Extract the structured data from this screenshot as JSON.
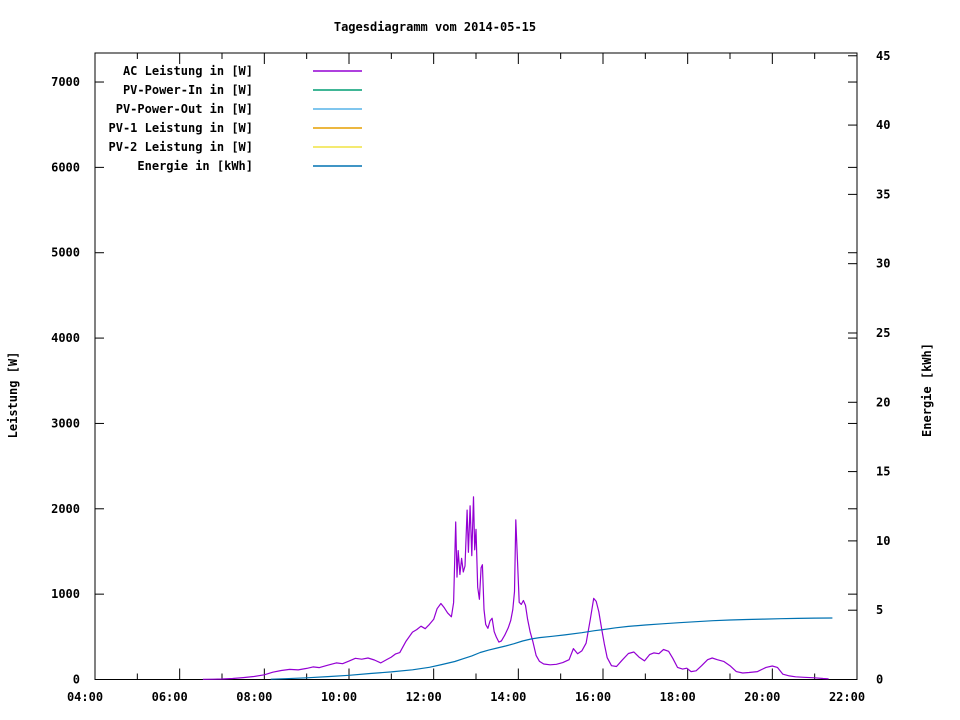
{
  "title": "Tagesdiagramm vom 2014-05-15",
  "colors": {
    "foreground": "#000000",
    "background": "#ffffff",
    "ac_power": "#9400D3",
    "pv_power_in": "#009E73",
    "pv_power_out": "#56B4E9",
    "pv1_power": "#E69F00",
    "pv2_power": "#F0E442",
    "energy": "#0072B2"
  },
  "chart_data": {
    "type": "line",
    "title": "Tagesdiagramm vom 2014-05-15",
    "grid": false,
    "legend_position": "top-left-inside",
    "x_axis": {
      "unit": "time of day",
      "range_hours": [
        4,
        22
      ],
      "major_ticks_hours": [
        4,
        6,
        8,
        10,
        12,
        14,
        16,
        18,
        20,
        22
      ],
      "tick_labels": [
        "04:00",
        "06:00",
        "08:00",
        "10:00",
        "12:00",
        "14:00",
        "16:00",
        "18:00",
        "20:00",
        "22:00"
      ],
      "minor_tick_every_hours": 1
    },
    "y_left": {
      "label": "Leistung [W]",
      "range": [
        0,
        7340
      ],
      "tick_values": [
        0,
        1000,
        2000,
        3000,
        4000,
        5000,
        6000,
        7000
      ],
      "tick_labels": [
        "0",
        "1000",
        "2000",
        "3000",
        "4000",
        "5000",
        "6000",
        "7000"
      ]
    },
    "y_right": {
      "label": "Energie [kWh]",
      "range": [
        0,
        45.2
      ],
      "tick_values": [
        0,
        5,
        10,
        15,
        20,
        25,
        30,
        35,
        40,
        45
      ],
      "tick_labels": [
        "0",
        "5",
        "10",
        "15",
        "20",
        "25",
        "30",
        "35",
        "40",
        "45"
      ]
    },
    "series": [
      {
        "name": "AC Leistung in [W]",
        "color": "#9400D3",
        "axis": "left",
        "visible_curve": true,
        "points": [
          [
            6.55,
            2
          ],
          [
            6.8,
            3
          ],
          [
            7.0,
            6
          ],
          [
            7.25,
            12
          ],
          [
            7.5,
            22
          ],
          [
            7.75,
            35
          ],
          [
            8.0,
            55
          ],
          [
            8.2,
            85
          ],
          [
            8.4,
            105
          ],
          [
            8.6,
            118
          ],
          [
            8.8,
            112
          ],
          [
            9.0,
            130
          ],
          [
            9.15,
            148
          ],
          [
            9.3,
            140
          ],
          [
            9.5,
            168
          ],
          [
            9.7,
            195
          ],
          [
            9.85,
            185
          ],
          [
            10.0,
            215
          ],
          [
            10.15,
            248
          ],
          [
            10.3,
            238
          ],
          [
            10.45,
            252
          ],
          [
            10.6,
            228
          ],
          [
            10.75,
            195
          ],
          [
            10.9,
            235
          ],
          [
            11.0,
            262
          ],
          [
            11.1,
            300
          ],
          [
            11.2,
            315
          ],
          [
            11.35,
            450
          ],
          [
            11.5,
            555
          ],
          [
            11.6,
            585
          ],
          [
            11.7,
            625
          ],
          [
            11.8,
            595
          ],
          [
            11.9,
            645
          ],
          [
            12.0,
            705
          ],
          [
            12.08,
            830
          ],
          [
            12.17,
            890
          ],
          [
            12.25,
            840
          ],
          [
            12.33,
            780
          ],
          [
            12.42,
            735
          ],
          [
            12.47,
            900
          ],
          [
            12.52,
            1845
          ],
          [
            12.55,
            1200
          ],
          [
            12.58,
            1510
          ],
          [
            12.62,
            1230
          ],
          [
            12.66,
            1420
          ],
          [
            12.7,
            1260
          ],
          [
            12.74,
            1330
          ],
          [
            12.79,
            1985
          ],
          [
            12.82,
            1490
          ],
          [
            12.86,
            2035
          ],
          [
            12.9,
            1450
          ],
          [
            12.94,
            2140
          ],
          [
            12.97,
            1520
          ],
          [
            13.0,
            1760
          ],
          [
            13.04,
            1080
          ],
          [
            13.08,
            940
          ],
          [
            13.12,
            1310
          ],
          [
            13.15,
            1345
          ],
          [
            13.19,
            820
          ],
          [
            13.23,
            645
          ],
          [
            13.28,
            600
          ],
          [
            13.33,
            685
          ],
          [
            13.38,
            718
          ],
          [
            13.43,
            560
          ],
          [
            13.48,
            498
          ],
          [
            13.54,
            438
          ],
          [
            13.6,
            452
          ],
          [
            13.68,
            520
          ],
          [
            13.76,
            605
          ],
          [
            13.82,
            690
          ],
          [
            13.87,
            820
          ],
          [
            13.91,
            1030
          ],
          [
            13.94,
            1870
          ],
          [
            13.98,
            1390
          ],
          [
            14.02,
            905
          ],
          [
            14.07,
            880
          ],
          [
            14.12,
            925
          ],
          [
            14.17,
            868
          ],
          [
            14.22,
            705
          ],
          [
            14.28,
            555
          ],
          [
            14.34,
            452
          ],
          [
            14.42,
            282
          ],
          [
            14.5,
            212
          ],
          [
            14.6,
            182
          ],
          [
            14.75,
            172
          ],
          [
            14.9,
            178
          ],
          [
            15.05,
            198
          ],
          [
            15.2,
            232
          ],
          [
            15.3,
            362
          ],
          [
            15.4,
            302
          ],
          [
            15.5,
            335
          ],
          [
            15.6,
            425
          ],
          [
            15.7,
            705
          ],
          [
            15.78,
            950
          ],
          [
            15.84,
            915
          ],
          [
            15.9,
            795
          ],
          [
            15.97,
            590
          ],
          [
            16.03,
            420
          ],
          [
            16.1,
            255
          ],
          [
            16.2,
            162
          ],
          [
            16.32,
            152
          ],
          [
            16.45,
            225
          ],
          [
            16.6,
            305
          ],
          [
            16.73,
            322
          ],
          [
            16.85,
            262
          ],
          [
            16.98,
            218
          ],
          [
            17.1,
            292
          ],
          [
            17.2,
            312
          ],
          [
            17.32,
            302
          ],
          [
            17.43,
            352
          ],
          [
            17.55,
            330
          ],
          [
            17.65,
            248
          ],
          [
            17.76,
            142
          ],
          [
            17.88,
            122
          ],
          [
            17.98,
            132
          ],
          [
            18.08,
            92
          ],
          [
            18.2,
            102
          ],
          [
            18.33,
            162
          ],
          [
            18.47,
            232
          ],
          [
            18.58,
            252
          ],
          [
            18.7,
            232
          ],
          [
            18.85,
            212
          ],
          [
            19.0,
            162
          ],
          [
            19.15,
            92
          ],
          [
            19.3,
            76
          ],
          [
            19.45,
            82
          ],
          [
            19.65,
            92
          ],
          [
            19.85,
            142
          ],
          [
            20.0,
            158
          ],
          [
            20.12,
            142
          ],
          [
            20.25,
            62
          ],
          [
            20.4,
            42
          ],
          [
            20.55,
            32
          ],
          [
            20.75,
            26
          ],
          [
            21.0,
            20
          ],
          [
            21.2,
            12
          ],
          [
            21.33,
            8
          ]
        ]
      },
      {
        "name": "PV-Power-In in [W]",
        "color": "#009E73",
        "axis": "left",
        "visible_curve": false,
        "points": []
      },
      {
        "name": "PV-Power-Out in [W]",
        "color": "#56B4E9",
        "axis": "left",
        "visible_curve": false,
        "points": []
      },
      {
        "name": "PV-1 Leistung in [W]",
        "color": "#E69F00",
        "axis": "left",
        "visible_curve": false,
        "points": []
      },
      {
        "name": "PV-2 Leistung in [W]",
        "color": "#F0E442",
        "axis": "left",
        "visible_curve": false,
        "points": []
      },
      {
        "name": "Energie in [kWh]",
        "color": "#0072B2",
        "axis": "right",
        "visible_curve": true,
        "points": [
          [
            8.15,
            0.02
          ],
          [
            8.5,
            0.06
          ],
          [
            9.0,
            0.12
          ],
          [
            9.5,
            0.21
          ],
          [
            10.0,
            0.3
          ],
          [
            10.5,
            0.43
          ],
          [
            11.0,
            0.55
          ],
          [
            11.5,
            0.7
          ],
          [
            11.9,
            0.88
          ],
          [
            12.2,
            1.08
          ],
          [
            12.5,
            1.3
          ],
          [
            12.7,
            1.5
          ],
          [
            12.9,
            1.7
          ],
          [
            13.1,
            1.95
          ],
          [
            13.3,
            2.12
          ],
          [
            13.5,
            2.27
          ],
          [
            13.7,
            2.42
          ],
          [
            13.9,
            2.58
          ],
          [
            14.1,
            2.78
          ],
          [
            14.3,
            2.92
          ],
          [
            14.5,
            3.02
          ],
          [
            14.8,
            3.12
          ],
          [
            15.1,
            3.22
          ],
          [
            15.5,
            3.38
          ],
          [
            15.8,
            3.52
          ],
          [
            16.0,
            3.6
          ],
          [
            16.3,
            3.73
          ],
          [
            16.6,
            3.83
          ],
          [
            17.0,
            3.93
          ],
          [
            17.4,
            4.02
          ],
          [
            17.8,
            4.1
          ],
          [
            18.2,
            4.17
          ],
          [
            18.6,
            4.24
          ],
          [
            19.0,
            4.29
          ],
          [
            19.4,
            4.33
          ],
          [
            19.8,
            4.36
          ],
          [
            20.2,
            4.39
          ],
          [
            20.6,
            4.41
          ],
          [
            21.0,
            4.43
          ],
          [
            21.42,
            4.44
          ]
        ]
      }
    ]
  }
}
